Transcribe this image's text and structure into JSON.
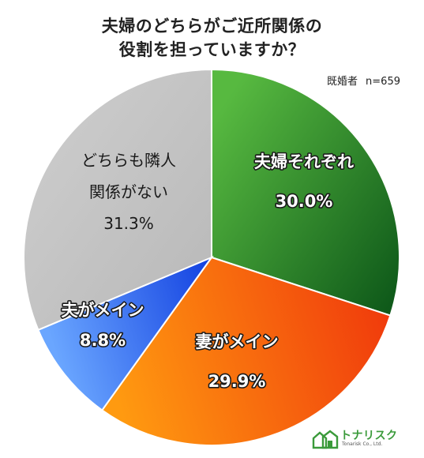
{
  "chart_data": {
    "type": "pie",
    "title_line1": "夫婦のどちらがご近所関係の",
    "title_line2": "役割を担っていますか？",
    "sample_group": "既婚者",
    "sample_size": "n=659",
    "slices": [
      {
        "label_lines": [
          "夫婦それぞれ"
        ],
        "value": 30.0,
        "value_label": "30.0%",
        "colors": [
          "#57b940",
          "#0f5a1a"
        ],
        "label_style": "white"
      },
      {
        "label_lines": [
          "妻がメイン"
        ],
        "value": 29.9,
        "value_label": "29.9%",
        "colors": [
          "#ff9a10",
          "#f03a0c"
        ],
        "label_style": "white"
      },
      {
        "label_lines": [
          "夫がメイン"
        ],
        "value": 8.8,
        "value_label": "8.8%",
        "colors": [
          "#6aa6ff",
          "#1240e0"
        ],
        "label_style": "white"
      },
      {
        "label_lines": [
          "どちらも隣人",
          "関係がない"
        ],
        "value": 31.3,
        "value_label": "31.3%",
        "colors": [
          "#cfcfcf",
          "#b8b8b8"
        ],
        "label_style": "dark"
      }
    ]
  },
  "logo": {
    "brand": "トナリスク",
    "sub": "Tonarisk Co., Ltd.",
    "icon": "house-icon"
  }
}
